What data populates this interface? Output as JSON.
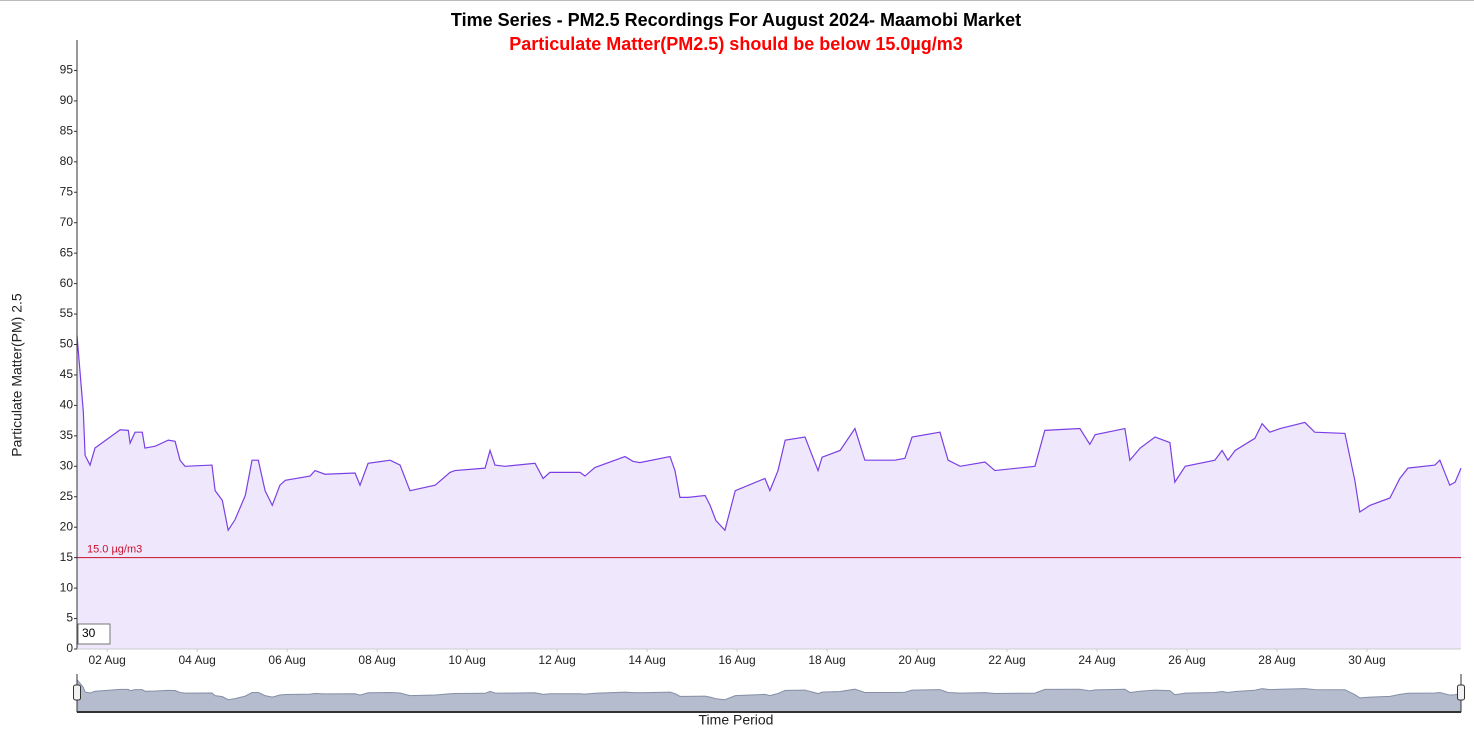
{
  "chart_data": {
    "type": "area",
    "title": "Time Series - PM2.5 Recordings For August 2024- Maamobi Market",
    "subtitle": "Particulate Matter(PM2.5) should be below 15.0µg/m3",
    "y_label": "Particulate Matter(PM) 2.5",
    "x_label": "Time Period",
    "range_input": 30,
    "color": "#7b3fe4",
    "fill_color": "#efe8fc",
    "threshold": {
      "value": 15,
      "label": "15.0 µg/m3",
      "color": "#c8102e"
    },
    "x": [
      1.33,
      1.47,
      1.51,
      1.62,
      1.73,
      2.29,
      2.47,
      2.51,
      2.62,
      2.78,
      2.84,
      3.07,
      3.36,
      3.51,
      3.62,
      3.73,
      4.33,
      4.4,
      4.56,
      4.69,
      4.84,
      5.07,
      5.22,
      5.36,
      5.51,
      5.67,
      5.84,
      5.96,
      6.51,
      6.62,
      6.84,
      7.51,
      7.62,
      7.8,
      8.29,
      8.51,
      8.73,
      9.29,
      9.62,
      9.73,
      10.4,
      10.51,
      10.62,
      10.84,
      11.51,
      11.69,
      11.84,
      12.51,
      12.62,
      12.84,
      13.51,
      13.69,
      13.84,
      14.51,
      14.62,
      14.73,
      14.91,
      15.29,
      15.4,
      15.53,
      15.73,
      15.96,
      16.62,
      16.73,
      16.91,
      17.07,
      17.51,
      17.8,
      17.89,
      18.29,
      18.62,
      18.84,
      19.51,
      19.73,
      19.89,
      20.51,
      20.69,
      20.96,
      21.51,
      21.73,
      22.62,
      22.84,
      23.62,
      23.84,
      23.96,
      24.62,
      24.73,
      24.96,
      25.29,
      25.62,
      25.73,
      25.96,
      26.62,
      26.78,
      26.91,
      27.07,
      27.51,
      27.67,
      27.84,
      28.07,
      28.62,
      28.84,
      29.51,
      29.73,
      29.84,
      30.07,
      30.51,
      30.73,
      30.91,
      31.51,
      31.62,
      31.84,
      31.96,
      32.09
    ],
    "values": [
      51.5,
      39,
      31.8,
      30.2,
      33,
      36,
      35.9,
      33.8,
      35.6,
      35.6,
      33,
      33.3,
      34.3,
      34.1,
      31,
      30,
      30.2,
      26,
      24.4,
      19.5,
      21.2,
      25.2,
      31,
      31,
      26,
      23.6,
      26.9,
      27.7,
      28.4,
      29.3,
      28.7,
      28.9,
      26.9,
      30.5,
      31,
      30.2,
      26,
      26.9,
      29,
      29.3,
      29.7,
      32.6,
      30.2,
      30,
      30.5,
      28,
      29,
      29,
      28.4,
      29.8,
      31.6,
      30.8,
      30.6,
      31.6,
      29.3,
      24.9,
      24.9,
      25.2,
      23.6,
      21.1,
      19.5,
      26,
      28,
      26,
      29.3,
      34.3,
      34.8,
      29.3,
      31.5,
      32.6,
      36.2,
      31,
      31,
      31.3,
      34.8,
      35.6,
      31,
      30,
      30.7,
      29.3,
      30,
      35.9,
      36.2,
      33.6,
      35.2,
      36.2,
      31,
      33,
      34.8,
      33.9,
      27.4,
      30,
      31,
      32.6,
      31,
      32.6,
      34.6,
      37,
      35.6,
      36.2,
      37.2,
      35.6,
      35.4,
      27.7,
      22.5,
      23.6,
      24.8,
      28,
      29.7,
      30.2,
      31,
      26.9,
      27.4,
      29.7
    ],
    "xlim": [
      1.33,
      32.09
    ],
    "xticks": [
      {
        "value": 2,
        "label": "02 Aug"
      },
      {
        "value": 4,
        "label": "04 Aug"
      },
      {
        "value": 6,
        "label": "06 Aug"
      },
      {
        "value": 8,
        "label": "08 Aug"
      },
      {
        "value": 10,
        "label": "10 Aug"
      },
      {
        "value": 12,
        "label": "12 Aug"
      },
      {
        "value": 14,
        "label": "14 Aug"
      },
      {
        "value": 16,
        "label": "16 Aug"
      },
      {
        "value": 18,
        "label": "18 Aug"
      },
      {
        "value": 20,
        "label": "20 Aug"
      },
      {
        "value": 22,
        "label": "22 Aug"
      },
      {
        "value": 24,
        "label": "24 Aug"
      },
      {
        "value": 26,
        "label": "26 Aug"
      },
      {
        "value": 28,
        "label": "28 Aug"
      },
      {
        "value": 30,
        "label": "30 Aug"
      }
    ],
    "ylim": [
      0,
      100
    ],
    "yticks": [
      0,
      5,
      10,
      15,
      20,
      25,
      30,
      35,
      40,
      45,
      50,
      55,
      60,
      65,
      70,
      75,
      80,
      85,
      90,
      95
    ],
    "grid": false
  }
}
